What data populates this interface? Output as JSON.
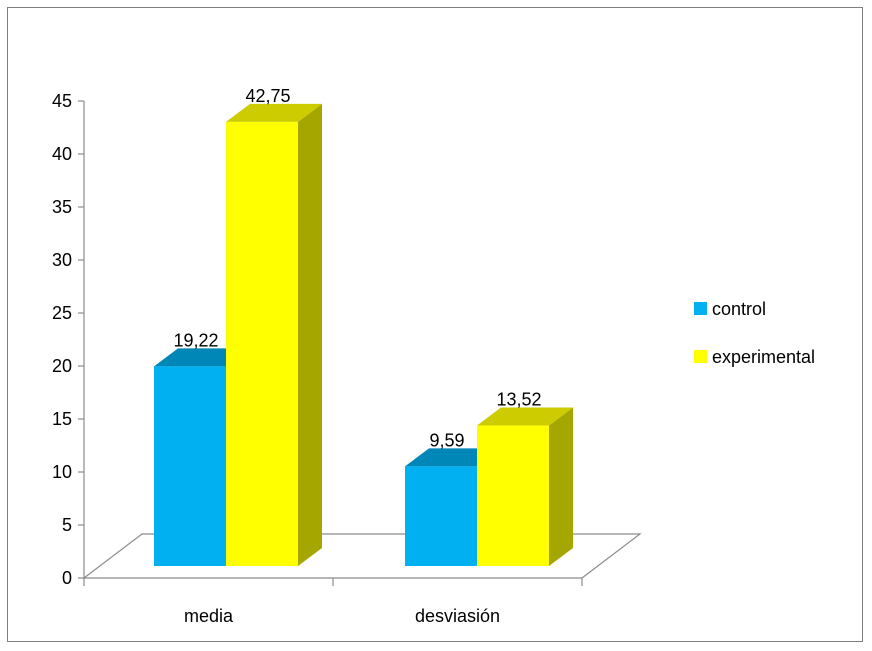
{
  "chart_data": {
    "type": "bar",
    "style": "3d-clustered-column",
    "categories": [
      "media",
      "desviasión"
    ],
    "series": [
      {
        "name": "control",
        "values": [
          19.22,
          9.59
        ],
        "labels": [
          "19,22",
          "9,59"
        ],
        "color": "#00b0f0",
        "top_color": "#0087b8",
        "side_color": "#0075a3"
      },
      {
        "name": "experimental",
        "values": [
          42.75,
          13.52
        ],
        "labels": [
          "42,75",
          "13,52"
        ],
        "color": "#ffff00",
        "top_color": "#cccc00",
        "side_color": "#a6a600"
      }
    ],
    "yticks": [
      "0",
      "5",
      "10",
      "15",
      "20",
      "25",
      "30",
      "35",
      "40",
      "45"
    ],
    "ylim": [
      0,
      45
    ],
    "legend_position": "right",
    "grid": false
  }
}
